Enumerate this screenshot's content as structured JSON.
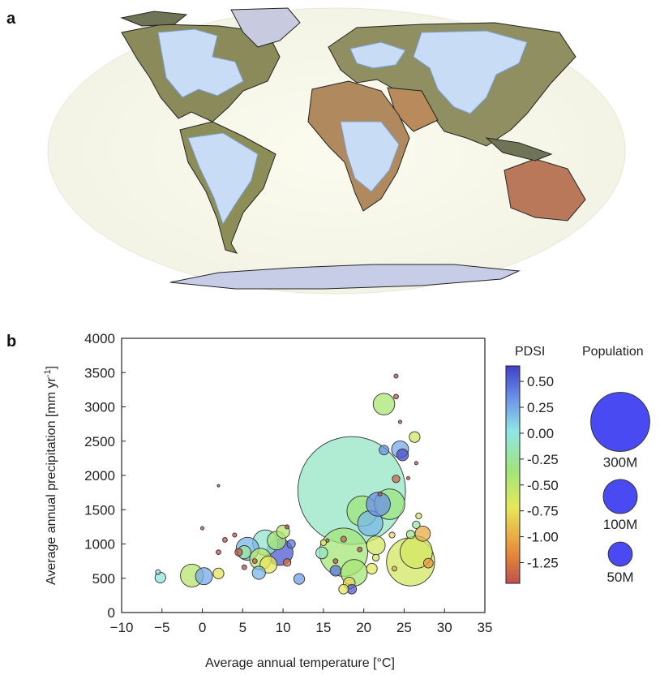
{
  "panel_a": {
    "label": "a"
  },
  "panel_b": {
    "label": "b"
  },
  "chart_data": {
    "type": "scatter",
    "xlabel": "Average annual temperature [°C]",
    "ylabel": "Average annual precipitation [mm yr",
    "ylabel_superscript": "-1",
    "ylabel_close": "]",
    "xlim": [
      -10,
      35
    ],
    "ylim": [
      0,
      4000
    ],
    "xticks": [
      "−10",
      "−5",
      "0",
      "5",
      "10",
      "15",
      "20",
      "25",
      "30",
      "35"
    ],
    "xtick_values": [
      -10,
      -5,
      0,
      5,
      10,
      15,
      20,
      25,
      30,
      35
    ],
    "yticks": [
      "0",
      "500",
      "1000",
      "1500",
      "2000",
      "2500",
      "3000",
      "3500",
      "4000"
    ],
    "ytick_values": [
      0,
      500,
      1000,
      1500,
      2000,
      2500,
      3000,
      3500,
      4000
    ],
    "colorbar": {
      "title": "PDSI",
      "range": [
        -1.45,
        0.65
      ],
      "ticks": [
        "0.50",
        "0.25",
        "0.00",
        "-0.25",
        "-0.50",
        "-0.75",
        "-1.00",
        "-1.25"
      ],
      "tick_values": [
        0.5,
        0.25,
        0.0,
        -0.25,
        -0.5,
        -0.75,
        -1.0,
        -1.25
      ]
    },
    "size_legend": {
      "title": "Population",
      "color": "#2a2af0",
      "items": [
        {
          "label": "300M",
          "population_m": 300
        },
        {
          "label": "100M",
          "population_m": 100
        },
        {
          "label": "50M",
          "population_m": 50
        }
      ]
    },
    "points": [
      {
        "x": 18.5,
        "y": 1780,
        "pop": 1000,
        "pdsi": -0.1
      },
      {
        "x": 25.8,
        "y": 740,
        "pop": 200,
        "pdsi": -0.62
      },
      {
        "x": 17.5,
        "y": 880,
        "pop": 200,
        "pdsi": -0.38
      },
      {
        "x": 22.5,
        "y": 3040,
        "pop": 40,
        "pdsi": -0.42
      },
      {
        "x": 26.5,
        "y": 880,
        "pop": 90,
        "pdsi": -0.62
      },
      {
        "x": 19.8,
        "y": 1480,
        "pop": 80,
        "pdsi": -0.35
      },
      {
        "x": 23.2,
        "y": 1580,
        "pop": 80,
        "pdsi": -0.33
      },
      {
        "x": 21.8,
        "y": 1580,
        "pop": 50,
        "pdsi": 0.35
      },
      {
        "x": 20.8,
        "y": 1300,
        "pop": 55,
        "pdsi": 0.2
      },
      {
        "x": 18.8,
        "y": 580,
        "pop": 60,
        "pdsi": -0.4
      },
      {
        "x": 9.6,
        "y": 880,
        "pop": 60,
        "pdsi": 0.55
      },
      {
        "x": 7.8,
        "y": 1020,
        "pop": 55,
        "pdsi": -0.05
      },
      {
        "x": 5.6,
        "y": 930,
        "pop": 45,
        "pdsi": 0.2
      },
      {
        "x": -1.3,
        "y": 540,
        "pop": 45,
        "pdsi": -0.48
      },
      {
        "x": 7.2,
        "y": 780,
        "pop": 40,
        "pdsi": -0.5
      },
      {
        "x": 9.2,
        "y": 1050,
        "pop": 30,
        "pdsi": -0.4
      },
      {
        "x": 21.5,
        "y": 980,
        "pop": 30,
        "pdsi": -0.62
      },
      {
        "x": 8.2,
        "y": 700,
        "pop": 25,
        "pdsi": -0.72
      },
      {
        "x": 0.2,
        "y": 530,
        "pop": 25,
        "pdsi": 0.25
      },
      {
        "x": 24.5,
        "y": 2380,
        "pop": 25,
        "pdsi": 0.25
      },
      {
        "x": 27.3,
        "y": 1150,
        "pop": 20,
        "pdsi": -1.0
      },
      {
        "x": 10.0,
        "y": 1180,
        "pop": 15,
        "pdsi": -0.45
      },
      {
        "x": 7.0,
        "y": 580,
        "pop": 15,
        "pdsi": 0.2
      },
      {
        "x": 5.2,
        "y": 880,
        "pop": 15,
        "pdsi": -0.25
      },
      {
        "x": 14.8,
        "y": 870,
        "pop": 12,
        "pdsi": -0.1
      },
      {
        "x": 12.0,
        "y": 490,
        "pop": 10,
        "pdsi": 0.3
      },
      {
        "x": 2.0,
        "y": 570,
        "pop": 10,
        "pdsi": -0.75
      },
      {
        "x": -5.2,
        "y": 510,
        "pop": 10,
        "pdsi": 0.0
      },
      {
        "x": 16.5,
        "y": 610,
        "pop": 10,
        "pdsi": 0.45
      },
      {
        "x": 21.0,
        "y": 640,
        "pop": 10,
        "pdsi": -0.7
      },
      {
        "x": 18.2,
        "y": 430,
        "pop": 12,
        "pdsi": -0.8
      },
      {
        "x": 26.3,
        "y": 2560,
        "pop": 10,
        "pdsi": -0.6
      },
      {
        "x": 24.8,
        "y": 2300,
        "pop": 12,
        "pdsi": 0.6
      },
      {
        "x": 22.5,
        "y": 2370,
        "pop": 8,
        "pdsi": 0.35
      },
      {
        "x": 28.0,
        "y": 720,
        "pop": 8,
        "pdsi": -1.1
      },
      {
        "x": 18.5,
        "y": 340,
        "pop": 8,
        "pdsi": 0.55
      },
      {
        "x": 17.5,
        "y": 340,
        "pop": 8,
        "pdsi": -0.7
      },
      {
        "x": 11.0,
        "y": 1000,
        "pop": 6,
        "pdsi": 0.45
      },
      {
        "x": 24.0,
        "y": 1950,
        "pop": 5,
        "pdsi": -1.35
      },
      {
        "x": 25.8,
        "y": 1140,
        "pop": 6,
        "pdsi": -0.3
      },
      {
        "x": 26.5,
        "y": 1280,
        "pop": 5,
        "pdsi": -0.2
      },
      {
        "x": 10.5,
        "y": 730,
        "pop": 5,
        "pdsi": -1.3
      },
      {
        "x": 4.5,
        "y": 880,
        "pop": 5,
        "pdsi": -1.4
      },
      {
        "x": 21.5,
        "y": 800,
        "pop": 4,
        "pdsi": -0.6
      },
      {
        "x": 23.5,
        "y": 1130,
        "pop": 3,
        "pdsi": -0.8
      },
      {
        "x": 17.5,
        "y": 1070,
        "pop": 3,
        "pdsi": -1.35
      },
      {
        "x": 15.0,
        "y": 1020,
        "pop": 3,
        "pdsi": -0.7
      },
      {
        "x": 26.8,
        "y": 1410,
        "pop": 3,
        "pdsi": -0.6
      },
      {
        "x": 2.8,
        "y": 1060,
        "pop": 2,
        "pdsi": -1.45
      },
      {
        "x": 2.0,
        "y": 880,
        "pop": 2,
        "pdsi": -1.45
      },
      {
        "x": 5.2,
        "y": 660,
        "pop": 2,
        "pdsi": -1.45
      },
      {
        "x": 6.5,
        "y": 750,
        "pop": 2,
        "pdsi": -1.4
      },
      {
        "x": 24.0,
        "y": 3150,
        "pop": 2,
        "pdsi": -1.45
      },
      {
        "x": 24.0,
        "y": 3450,
        "pop": 1.5,
        "pdsi": -1.45
      },
      {
        "x": 4.0,
        "y": 1130,
        "pop": 1.5,
        "pdsi": -1.45
      },
      {
        "x": 0.0,
        "y": 1230,
        "pop": 1,
        "pdsi": -1.45
      },
      {
        "x": 10.5,
        "y": 1250,
        "pop": 1.5,
        "pdsi": -1.45
      },
      {
        "x": 22.0,
        "y": 1730,
        "pop": 1.5,
        "pdsi": -1.45
      },
      {
        "x": 25.5,
        "y": 1960,
        "pop": 1,
        "pdsi": -1.45
      },
      {
        "x": 24.5,
        "y": 2780,
        "pop": 1,
        "pdsi": -1.45
      },
      {
        "x": 26.5,
        "y": 2180,
        "pop": 1,
        "pdsi": -1.45
      },
      {
        "x": -5.5,
        "y": 590,
        "pop": 2,
        "pdsi": 0.0
      },
      {
        "x": 16.5,
        "y": 750,
        "pop": 2,
        "pdsi": -1.45
      },
      {
        "x": 19.5,
        "y": 920,
        "pop": 2,
        "pdsi": -1.45
      },
      {
        "x": 23.8,
        "y": 640,
        "pop": 2,
        "pdsi": -1.0
      },
      {
        "x": 15.5,
        "y": 1050,
        "pop": 1,
        "pdsi": -1.45
      },
      {
        "x": 2.0,
        "y": 1850,
        "pop": 0.5,
        "pdsi": -1.45
      }
    ]
  }
}
